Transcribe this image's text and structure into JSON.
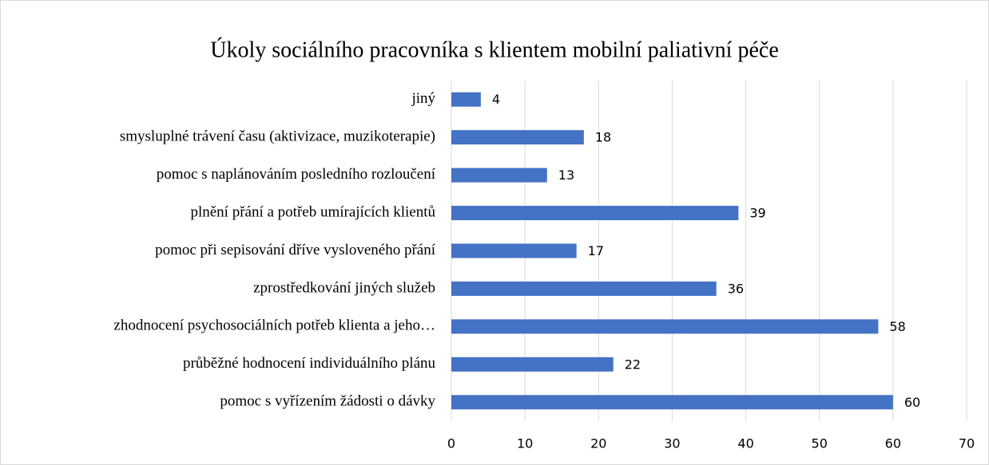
{
  "chart_data": {
    "type": "bar",
    "orientation": "horizontal",
    "title": "Úkoly sociálního pracovníka s klientem mobilní paliativní péče",
    "categories": [
      "jiný",
      "smysluplné trávení času (aktivizace, muzikoterapie)",
      "pomoc s naplánováním posledního rozloučení",
      "plnění přání a potřeb umírajících klientů",
      "pomoc při sepisování dříve vysloveného přání",
      "zprostředkování jiných služeb",
      "zhodnocení psychosociálních potřeb klienta a jeho…",
      "průběžné hodnocení individuálního plánu",
      "pomoc s vyřízením žádosti o dávky"
    ],
    "values": [
      4,
      18,
      13,
      39,
      17,
      36,
      58,
      22,
      60
    ],
    "color": "#4472c4",
    "xlim": [
      0,
      70
    ],
    "xticks": [
      0,
      10,
      20,
      30,
      40,
      50,
      60,
      70
    ],
    "grid": true
  }
}
